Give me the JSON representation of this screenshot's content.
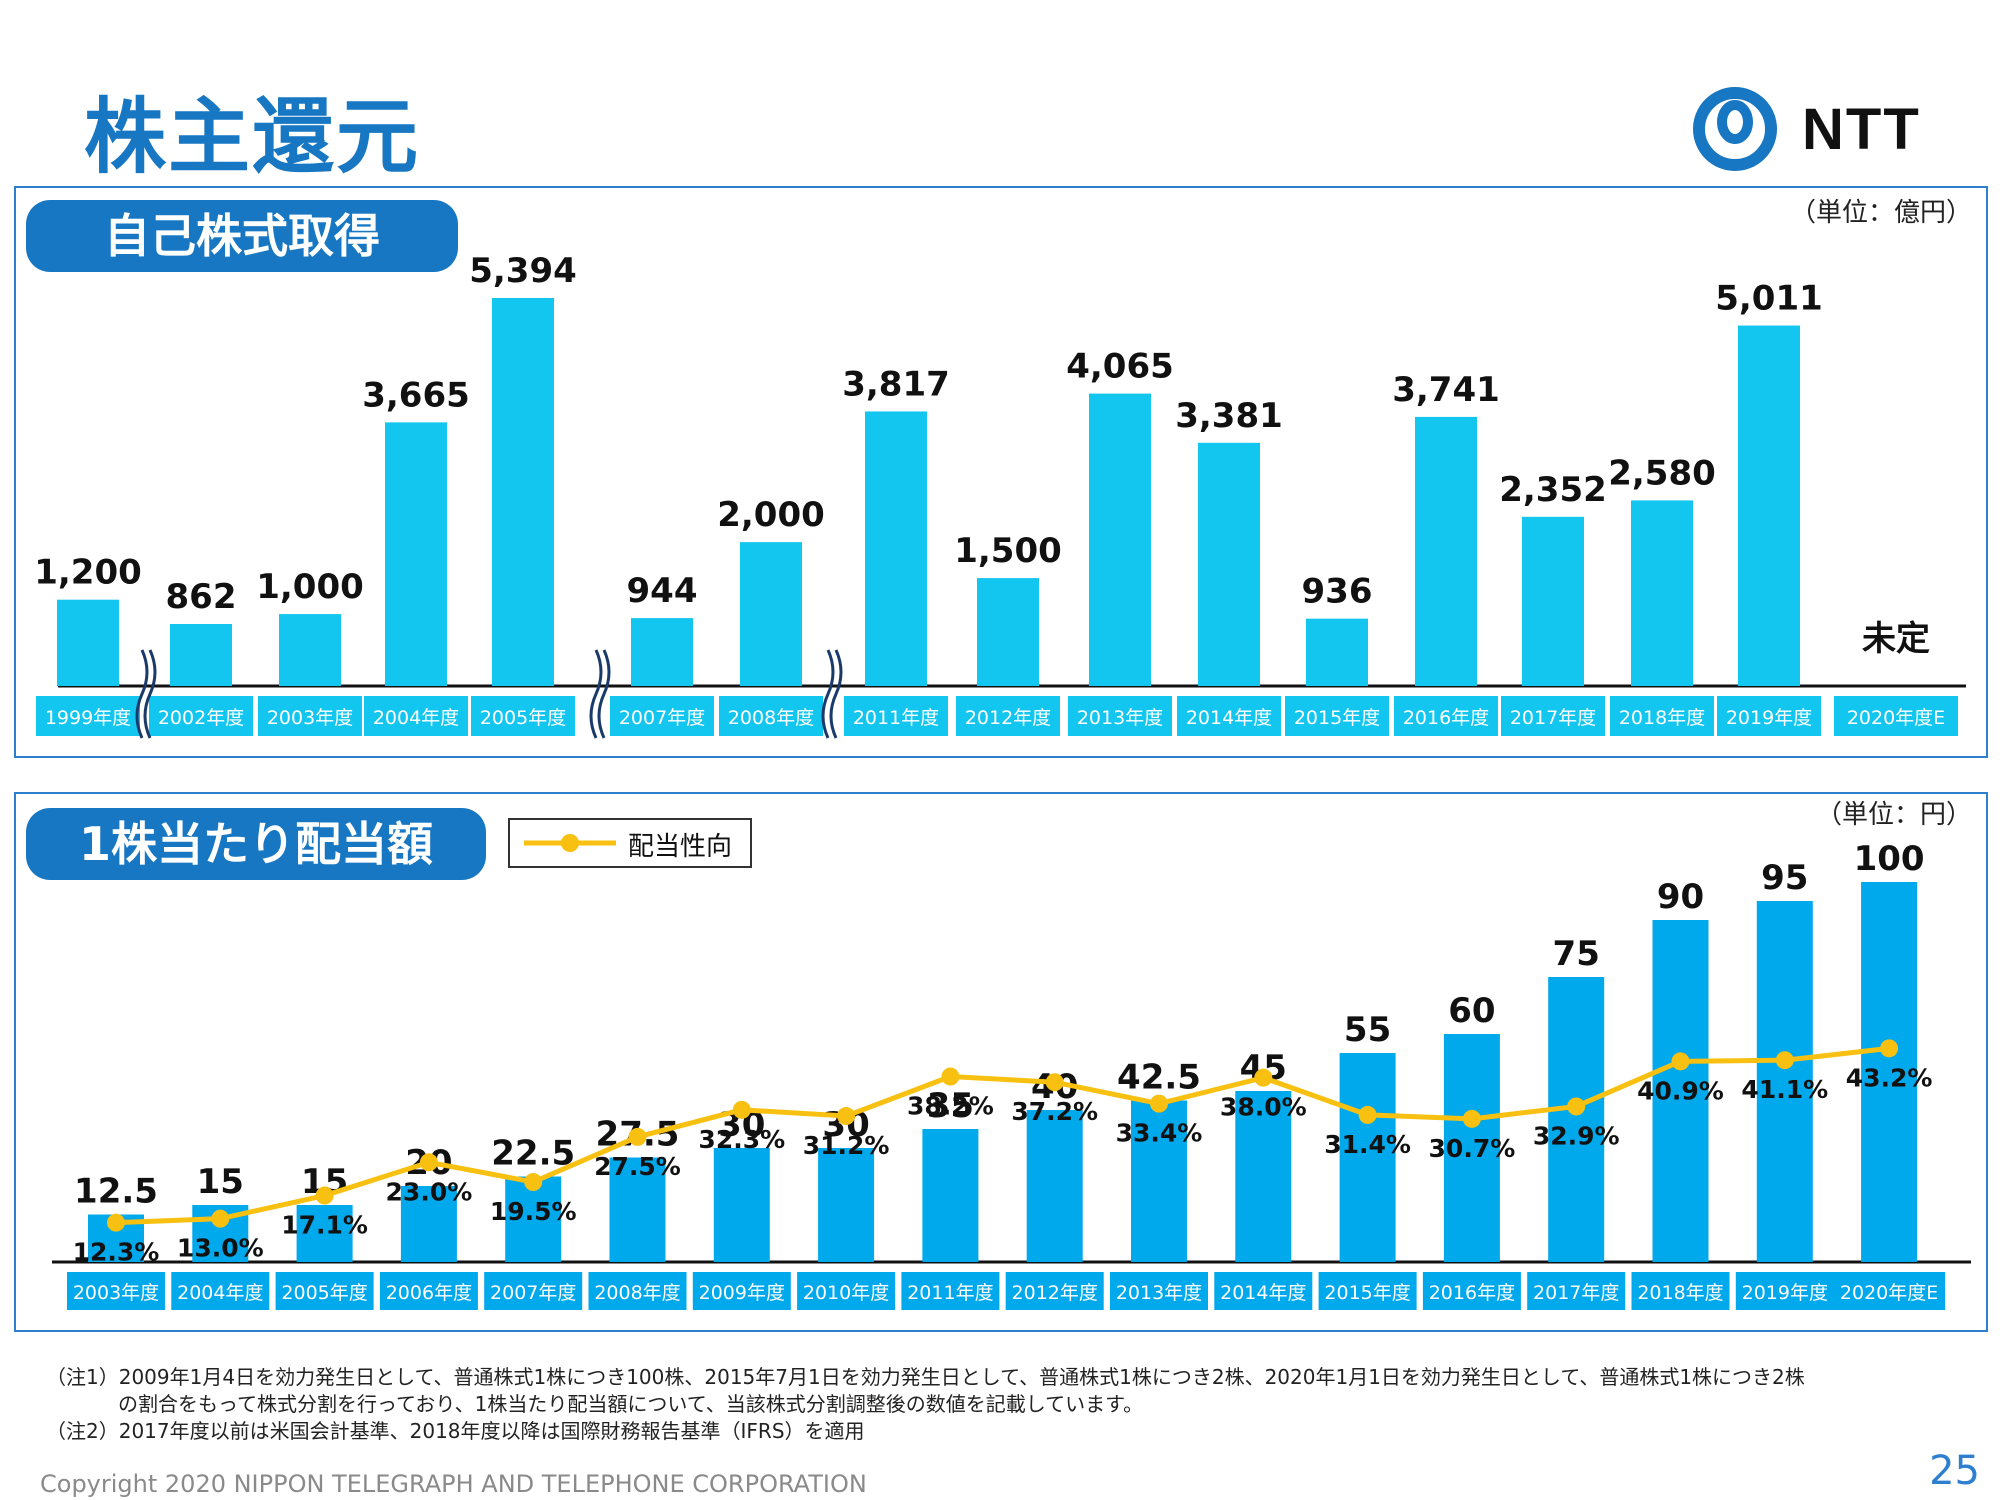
{
  "page": {
    "title": "株主還元",
    "page_number": "25",
    "copyright": "Copyright 2020 NIPPON TELEGRAPH AND TELEPHONE CORPORATION",
    "logo_text": "NTT",
    "notes": [
      "（注1）2009年1月4日を効力発生日として、普通株式1株につき100株、2015年7月1日を効力発生日として、普通株式1株につき2株、2020年1月1日を効力発生日として、普通株式1株につき2株",
      "の割合をもって株式分割を行っており、1株当たり配当額について、当該株式分割調整後の数値を記載しています。",
      "（注2）2017年度以前は米国会計基準、2018年度以降は国際財務報告基準（IFRS）を適用"
    ]
  },
  "buyback": {
    "panel_title": "自己株式取得",
    "unit": "（単位：億円）"
  },
  "dividend": {
    "panel_title": "1株当たり配当額",
    "unit": "（単位：円）",
    "legend_label": "配当性向"
  },
  "colors": {
    "brand_blue": "#1877c2",
    "buyback_bar": "#13c6ef",
    "dividend_bar": "#00a8ec",
    "payout_line": "#f8c010"
  },
  "chart_data": [
    {
      "type": "bar",
      "title": "自己株式取得",
      "unit": "（単位：億円）",
      "categories": [
        "1999年度",
        "2002年度",
        "2003年度",
        "2004年度",
        "2005年度",
        "2007年度",
        "2008年度",
        "2011年度",
        "2012年度",
        "2013年度",
        "2014年度",
        "2015年度",
        "2016年度",
        "2017年度",
        "2018年度",
        "2019年度",
        "2020年度E"
      ],
      "values": [
        1200,
        862,
        1000,
        3665,
        5394,
        944,
        2000,
        3817,
        1500,
        4065,
        3381,
        936,
        3741,
        2352,
        2580,
        5011,
        null
      ],
      "value_labels": [
        "1,200",
        "862",
        "1,000",
        "3,665",
        "5,394",
        "944",
        "2,000",
        "3,817",
        "1,500",
        "4,065",
        "3,381",
        "936",
        "3,741",
        "2,352",
        "2,580",
        "5,011",
        "未定"
      ],
      "axis_breaks_after": [
        "1999年度",
        "2005年度",
        "2008年度"
      ],
      "ylim": [
        0,
        5800
      ],
      "grid": false
    },
    {
      "type": "bar",
      "title": "1株当たり配当額",
      "unit": "（単位：円）",
      "categories": [
        "2003年度",
        "2004年度",
        "2005年度",
        "2006年度",
        "2007年度",
        "2008年度",
        "2009年度",
        "2010年度",
        "2011年度",
        "2012年度",
        "2013年度",
        "2014年度",
        "2015年度",
        "2016年度",
        "2017年度",
        "2018年度",
        "2019年度",
        "2020年度E"
      ],
      "values": [
        12.5,
        15,
        15,
        20,
        22.5,
        27.5,
        30,
        30,
        35,
        40,
        42.5,
        45,
        55,
        60,
        75,
        90,
        95,
        100
      ],
      "value_labels": [
        "12.5",
        "15",
        "15",
        "20",
        "22.5",
        "27.5",
        "30",
        "30",
        "35",
        "40",
        "42.5",
        "45",
        "55",
        "60",
        "75",
        "90",
        "95",
        "100"
      ],
      "ylim": [
        0,
        105
      ],
      "grid": false,
      "series": [
        {
          "name": "配当性向",
          "type": "line",
          "values": [
            12.3,
            13.0,
            17.1,
            23.0,
            19.5,
            27.5,
            32.3,
            31.2,
            38.2,
            37.2,
            33.4,
            38.0,
            31.4,
            30.7,
            32.9,
            40.9,
            41.1,
            43.2
          ],
          "labels": [
            "12.3%",
            "13.0%",
            "17.1%",
            "23.0%",
            "19.5%",
            "27.5%",
            "32.3%",
            "31.2%",
            "38.2%",
            "37.2%",
            "33.4%",
            "38.0%",
            "31.4%",
            "30.7%",
            "32.9%",
            "40.9%",
            "41.1%",
            "43.2%"
          ]
        }
      ]
    }
  ]
}
